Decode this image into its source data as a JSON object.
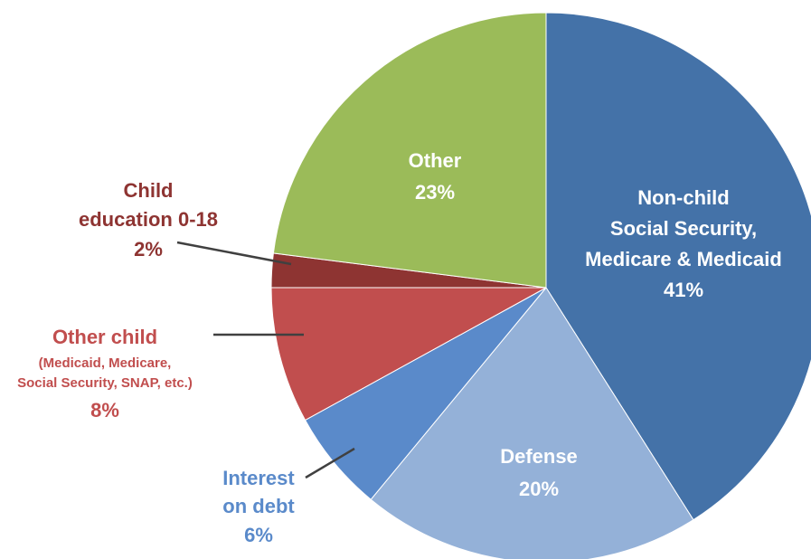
{
  "chart_data": {
    "type": "pie",
    "start": "top",
    "direction": "clockwise",
    "slices": [
      {
        "name": "Non-child Social Security, Medicare & Medicaid",
        "value": 41,
        "color": "#4472A8",
        "label_lines": [
          "Non-child",
          "Social Security,",
          "Medicare & Medicaid",
          "41%"
        ]
      },
      {
        "name": "Defense",
        "value": 20,
        "color": "#94B1D8",
        "label_lines": [
          "Defense",
          "20%"
        ]
      },
      {
        "name": "Interest on debt",
        "value": 6,
        "color": "#5A8ACA",
        "label_lines": [
          "Interest",
          "on debt",
          "6%"
        ]
      },
      {
        "name": "Other child (Medicaid, Medicare, Social Security, SNAP, etc.)",
        "value": 8,
        "color": "#C14E4E",
        "label_lines": [
          "Other child",
          "(Medicaid, Medicare,",
          "Social Security, SNAP, etc.)",
          "8%"
        ]
      },
      {
        "name": "Child education 0-18",
        "value": 2,
        "color": "#8E3432",
        "label_lines": [
          "Child",
          "education 0-18",
          "2%"
        ]
      },
      {
        "name": "Other",
        "value": 23,
        "color": "#9BBB59",
        "label_lines": [
          "Other",
          "23%"
        ]
      }
    ]
  }
}
